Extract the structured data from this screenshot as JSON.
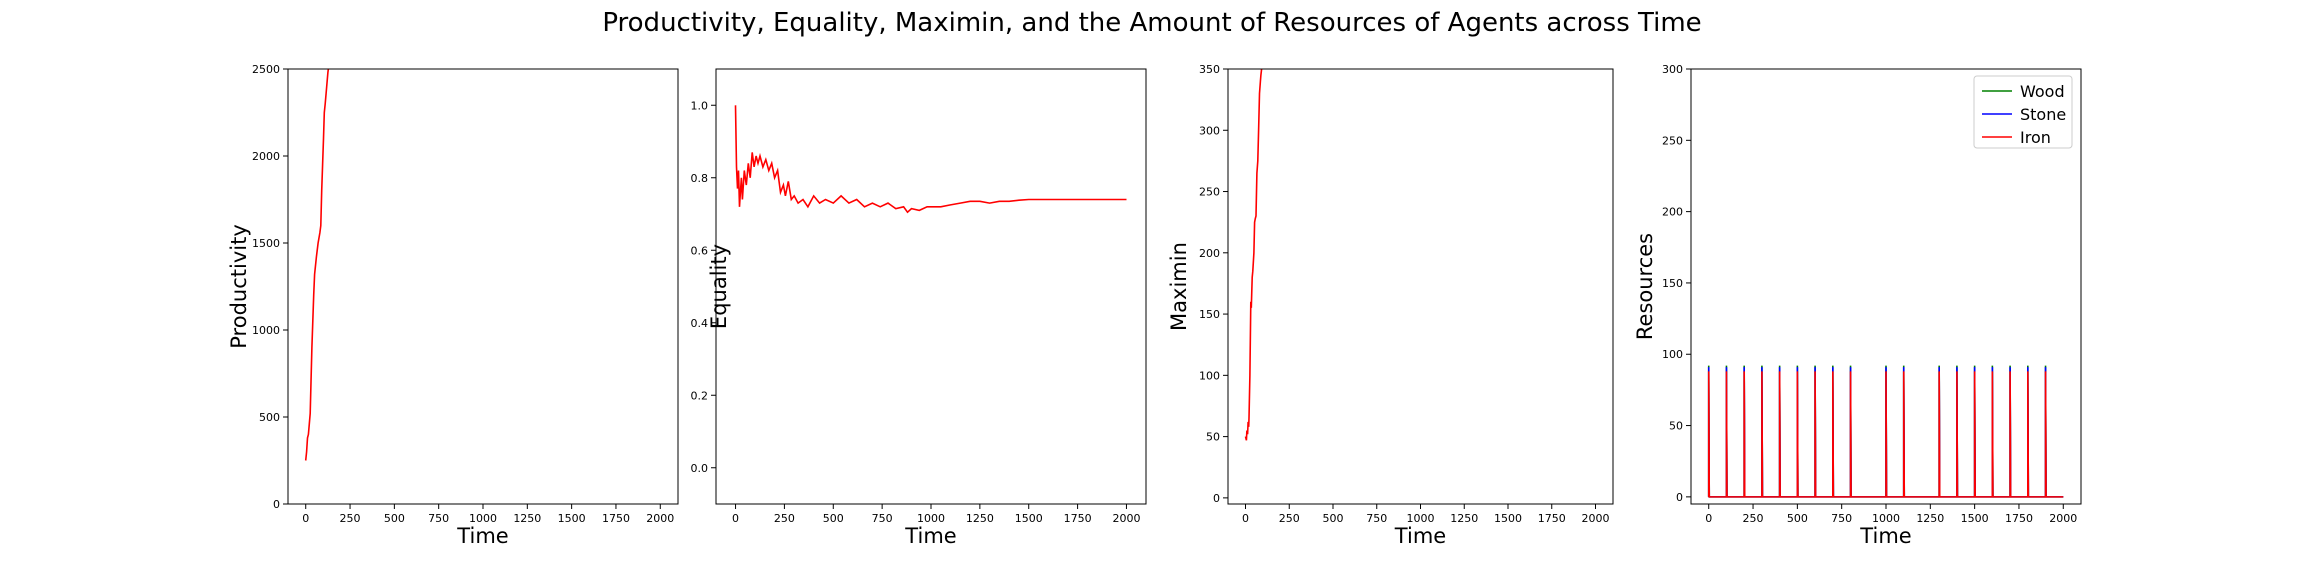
{
  "figure": {
    "title": "Productivity, Equality, Maximin, and the Amount of Resources of Agents across Time"
  },
  "chart_data": [
    {
      "type": "line",
      "xlabel": "Time",
      "ylabel": "Productivity",
      "xlim": [
        -100,
        2100
      ],
      "ylim": [
        0,
        2500
      ],
      "xticks": [
        0,
        250,
        500,
        750,
        1000,
        1250,
        1500,
        1750,
        2000
      ],
      "yticks": [
        0,
        500,
        1000,
        1500,
        2000,
        2500
      ],
      "series": [
        {
          "color": "#ff0000",
          "points": [
            [
              0,
              250
            ],
            [
              5,
              300
            ],
            [
              10,
              380
            ],
            [
              15,
              400
            ],
            [
              20,
              460
            ],
            [
              25,
              520
            ],
            [
              30,
              700
            ],
            [
              35,
              900
            ],
            [
              40,
              1050
            ],
            [
              45,
              1200
            ],
            [
              50,
              1320
            ],
            [
              60,
              1420
            ],
            [
              70,
              1500
            ],
            [
              80,
              1560
            ],
            [
              85,
              1600
            ],
            [
              90,
              1800
            ],
            [
              95,
              1950
            ],
            [
              100,
              2100
            ],
            [
              105,
              2250
            ],
            [
              110,
              2300
            ],
            [
              115,
              2360
            ],
            [
              120,
              2420
            ],
            [
              125,
              2480
            ],
            [
              130,
              2520
            ]
          ]
        }
      ]
    },
    {
      "type": "line",
      "xlabel": "Time",
      "ylabel": "Equality",
      "xlim": [
        -100,
        2100
      ],
      "ylim": [
        -0.1,
        1.1
      ],
      "xticks": [
        0,
        250,
        500,
        750,
        1000,
        1250,
        1500,
        1750,
        2000
      ],
      "yticks": [
        0.0,
        0.2,
        0.4,
        0.6,
        0.8,
        1.0
      ],
      "ytick_labels": [
        "0.0",
        "0.2",
        "0.4",
        "0.6",
        "0.8",
        "1.0"
      ],
      "series": [
        {
          "color": "#ff0000",
          "points": [
            [
              0,
              1.0
            ],
            [
              5,
              0.83
            ],
            [
              10,
              0.77
            ],
            [
              15,
              0.82
            ],
            [
              20,
              0.72
            ],
            [
              25,
              0.76
            ],
            [
              30,
              0.8
            ],
            [
              35,
              0.74
            ],
            [
              45,
              0.82
            ],
            [
              55,
              0.78
            ],
            [
              65,
              0.84
            ],
            [
              75,
              0.8
            ],
            [
              85,
              0.87
            ],
            [
              95,
              0.83
            ],
            [
              105,
              0.86
            ],
            [
              115,
              0.84
            ],
            [
              125,
              0.86
            ],
            [
              140,
              0.83
            ],
            [
              155,
              0.85
            ],
            [
              170,
              0.82
            ],
            [
              185,
              0.84
            ],
            [
              200,
              0.8
            ],
            [
              215,
              0.82
            ],
            [
              230,
              0.76
            ],
            [
              245,
              0.78
            ],
            [
              255,
              0.75
            ],
            [
              270,
              0.79
            ],
            [
              285,
              0.74
            ],
            [
              300,
              0.75
            ],
            [
              320,
              0.73
            ],
            [
              345,
              0.74
            ],
            [
              370,
              0.72
            ],
            [
              400,
              0.75
            ],
            [
              430,
              0.73
            ],
            [
              460,
              0.74
            ],
            [
              500,
              0.73
            ],
            [
              540,
              0.75
            ],
            [
              580,
              0.73
            ],
            [
              620,
              0.74
            ],
            [
              660,
              0.72
            ],
            [
              700,
              0.73
            ],
            [
              740,
              0.72
            ],
            [
              780,
              0.73
            ],
            [
              820,
              0.715
            ],
            [
              860,
              0.72
            ],
            [
              880,
              0.705
            ],
            [
              900,
              0.715
            ],
            [
              940,
              0.71
            ],
            [
              980,
              0.72
            ],
            [
              1050,
              0.72
            ],
            [
              1100,
              0.725
            ],
            [
              1150,
              0.73
            ],
            [
              1200,
              0.735
            ],
            [
              1250,
              0.735
            ],
            [
              1300,
              0.73
            ],
            [
              1350,
              0.735
            ],
            [
              1400,
              0.735
            ],
            [
              1450,
              0.738
            ],
            [
              1500,
              0.74
            ],
            [
              1600,
              0.74
            ],
            [
              1700,
              0.74
            ],
            [
              1800,
              0.74
            ],
            [
              1900,
              0.74
            ],
            [
              2000,
              0.74
            ]
          ]
        }
      ]
    },
    {
      "type": "line",
      "xlabel": "Time",
      "ylabel": "Maximin",
      "xlim": [
        -100,
        2100
      ],
      "ylim": [
        -5,
        350
      ],
      "xticks": [
        0,
        250,
        500,
        750,
        1000,
        1250,
        1500,
        1750,
        2000
      ],
      "yticks": [
        0,
        50,
        100,
        150,
        200,
        250,
        300,
        350
      ],
      "series": [
        {
          "color": "#ff0000",
          "points": [
            [
              0,
              50
            ],
            [
              5,
              47
            ],
            [
              8,
              55
            ],
            [
              12,
              52
            ],
            [
              15,
              62
            ],
            [
              18,
              58
            ],
            [
              20,
              65
            ],
            [
              25,
              100
            ],
            [
              30,
              160
            ],
            [
              33,
              155
            ],
            [
              38,
              180
            ],
            [
              42,
              185
            ],
            [
              48,
              200
            ],
            [
              52,
              225
            ],
            [
              56,
              228
            ],
            [
              60,
              230
            ],
            [
              65,
              265
            ],
            [
              70,
              275
            ],
            [
              75,
              300
            ],
            [
              80,
              330
            ],
            [
              85,
              340
            ],
            [
              88,
              345
            ],
            [
              92,
              350
            ],
            [
              96,
              355
            ]
          ]
        }
      ]
    },
    {
      "type": "line",
      "xlabel": "Time",
      "ylabel": "Resources",
      "xlim": [
        -100,
        2100
      ],
      "ylim": [
        -5,
        300
      ],
      "xticks": [
        0,
        250,
        500,
        750,
        1000,
        1250,
        1500,
        1750,
        2000
      ],
      "yticks": [
        0,
        50,
        100,
        150,
        200,
        250,
        300
      ],
      "legend_position": "upper right",
      "spike_times": [
        0,
        100,
        200,
        300,
        400,
        500,
        600,
        700,
        800,
        1000,
        1100,
        1300,
        1400,
        1500,
        1600,
        1700,
        1800,
        1900
      ],
      "baseline_end": 2000,
      "series": [
        {
          "name": "Wood",
          "color": "#008000",
          "spike_value": 92
        },
        {
          "name": "Stone",
          "color": "#0000ff",
          "spike_value": 91
        },
        {
          "name": "Iron",
          "color": "#ff0000",
          "spike_value": 88
        }
      ]
    }
  ]
}
